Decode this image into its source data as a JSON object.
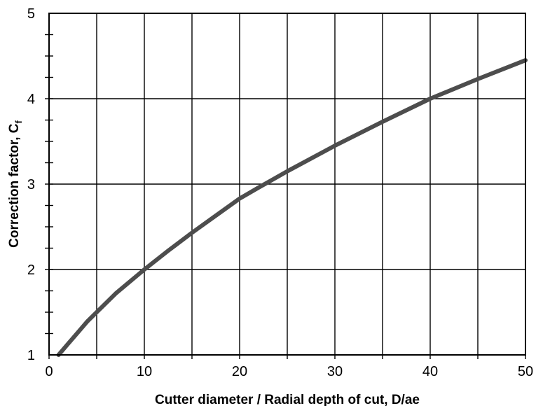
{
  "chart_data": {
    "type": "line",
    "xlabel": "Cutter diameter / Radial depth of cut, D/ae",
    "ylabel": {
      "main": "Correction factor, C",
      "subscript": "f"
    },
    "xlim": [
      0,
      50
    ],
    "ylim": [
      1,
      5
    ],
    "x_ticks": [
      0,
      10,
      20,
      30,
      40,
      50
    ],
    "y_ticks": [
      1,
      2,
      3,
      4,
      5
    ],
    "x_minor_step": 5,
    "y_minor_step": 0.25,
    "grid": true,
    "series": [
      {
        "color": "#4d4d4d",
        "x": [
          1,
          2,
          3,
          4,
          5,
          7,
          10,
          12.5,
          15,
          17.5,
          20,
          22,
          25,
          30,
          35,
          40,
          45,
          50
        ],
        "y": [
          1.0,
          1.13,
          1.26,
          1.39,
          1.5,
          1.72,
          2.0,
          2.22,
          2.43,
          2.63,
          2.83,
          2.96,
          3.15,
          3.45,
          3.73,
          4.0,
          4.23,
          4.45
        ]
      }
    ]
  }
}
